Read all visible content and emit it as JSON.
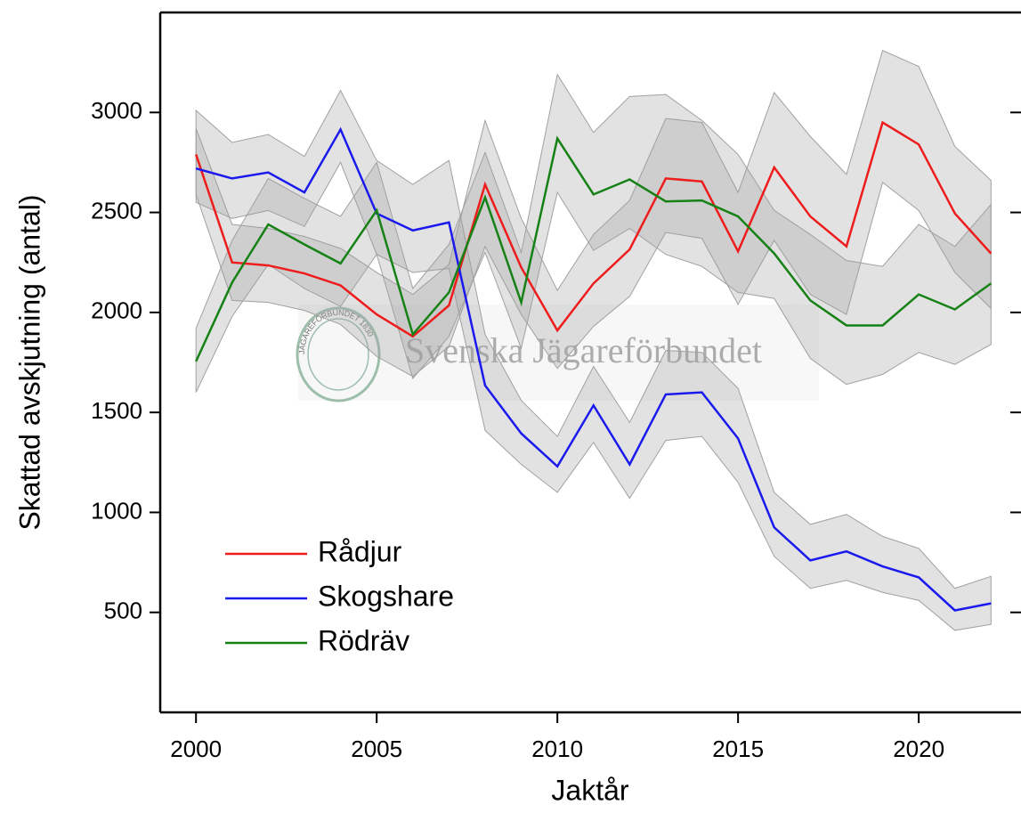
{
  "chart_data": {
    "type": "line",
    "x_label": "Jaktår",
    "y_label": "Skattad avskjutning (antal)",
    "x": [
      2000,
      2001,
      2002,
      2003,
      2004,
      2005,
      2006,
      2007,
      2008,
      2009,
      2010,
      2011,
      2012,
      2013,
      2014,
      2015,
      2016,
      2017,
      2018,
      2019,
      2020,
      2021,
      2022
    ],
    "series": [
      {
        "name": "Rådjur",
        "color": "#ee1c1c",
        "values": [
          2790,
          2250,
          2235,
          2195,
          2135,
          1990,
          1880,
          2035,
          2640,
          2225,
          1910,
          2145,
          2315,
          2670,
          2655,
          2305,
          2725,
          2480,
          2330,
          2950,
          2840,
          2495,
          2295
        ],
        "upper": [
          2920,
          2440,
          2420,
          2380,
          2320,
          2200,
          2090,
          2240,
          2960,
          2470,
          2110,
          2390,
          2560,
          2970,
          2950,
          2600,
          3100,
          2880,
          2690,
          3310,
          3230,
          2830,
          2660
        ],
        "lower": [
          2590,
          2060,
          2050,
          2010,
          1940,
          1780,
          1680,
          1830,
          2330,
          1990,
          1720,
          1930,
          2080,
          2400,
          2370,
          2040,
          2360,
          2090,
          1990,
          2650,
          2510,
          2200,
          2020
        ]
      },
      {
        "name": "Skogshare",
        "color": "#1a1aee",
        "values": [
          2720,
          2670,
          2700,
          2600,
          2915,
          2495,
          2410,
          2450,
          1635,
          1395,
          1230,
          1535,
          1240,
          1590,
          1600,
          1370,
          925,
          760,
          805,
          730,
          675,
          510,
          545
        ],
        "upper": [
          3010,
          2850,
          2890,
          2780,
          3110,
          2760,
          2640,
          2760,
          1890,
          1560,
          1380,
          1730,
          1450,
          1810,
          1800,
          1620,
          1100,
          940,
          990,
          880,
          820,
          620,
          680
        ],
        "lower": [
          2550,
          2470,
          2510,
          2430,
          2750,
          2290,
          2200,
          2220,
          1410,
          1240,
          1100,
          1350,
          1070,
          1360,
          1380,
          1150,
          780,
          620,
          660,
          600,
          560,
          410,
          440
        ]
      },
      {
        "name": "Rödräv",
        "color": "#168216",
        "values": [
          1755,
          2150,
          2440,
          2340,
          2245,
          2510,
          1890,
          2100,
          2575,
          2050,
          2870,
          2590,
          2665,
          2555,
          2560,
          2480,
          2295,
          2060,
          1935,
          1935,
          2090,
          2015,
          2145
        ],
        "upper": [
          1920,
          2360,
          2670,
          2570,
          2480,
          2750,
          2120,
          2340,
          2800,
          2300,
          3190,
          2900,
          3080,
          3090,
          2960,
          2790,
          2510,
          2390,
          2260,
          2230,
          2440,
          2330,
          2540
        ],
        "lower": [
          1600,
          1980,
          2240,
          2120,
          2030,
          2290,
          1670,
          1880,
          2300,
          1820,
          2600,
          2310,
          2420,
          2290,
          2230,
          2100,
          2070,
          1770,
          1640,
          1690,
          1800,
          1740,
          1840
        ]
      }
    ],
    "xlim": [
      1999.01,
      2022.83
    ],
    "ylim": [
      0,
      3500
    ],
    "xticks": [
      2000,
      2005,
      2010,
      2015,
      2020
    ],
    "yticks": [
      500,
      1000,
      1500,
      2000,
      2500,
      3000
    ],
    "band_color": "#a0a0a0",
    "legend": "lower-left",
    "watermark": {
      "text": "Svenska Jägareförbundet",
      "logo_text": "JÄGAREFÖRBUNDET 1830"
    }
  }
}
